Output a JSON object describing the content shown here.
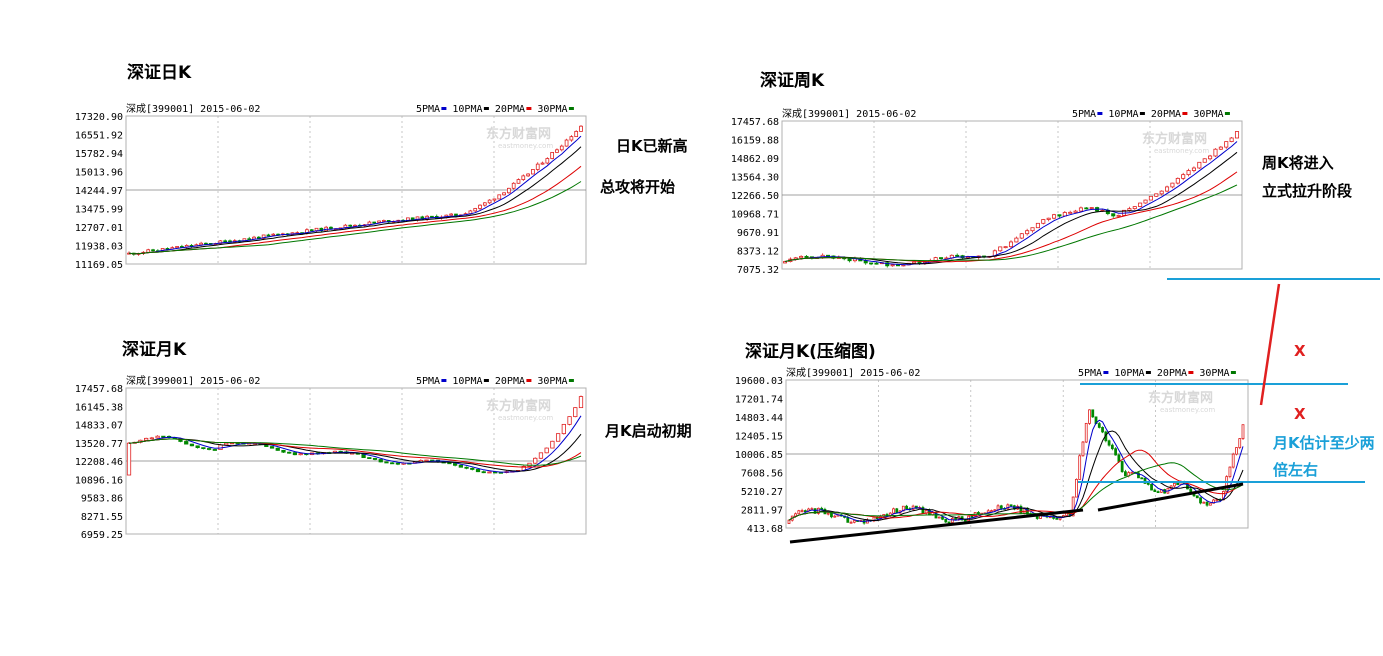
{
  "chart_data": [
    {
      "type": "candlestick",
      "title": "深证日K",
      "header": "深成[399001] 2015-06-02",
      "legend": [
        "5PMA",
        "10PMA",
        "20PMA",
        "30PMA"
      ],
      "yticks": [
        "17320.90",
        "16551.92",
        "15782.94",
        "15013.96",
        "14244.97",
        "13475.99",
        "12707.01",
        "11938.03",
        "11169.05"
      ],
      "ylim": [
        11169.05,
        17320.9
      ],
      "start": 11600,
      "end": 16900,
      "annotation": [
        "日K已新高",
        "总攻将开始"
      ]
    },
    {
      "type": "candlestick",
      "title": "深证周K",
      "header": "深成[399001] 2015-06-02",
      "legend": [
        "5PMA",
        "10PMA",
        "20PMA",
        "30PMA"
      ],
      "yticks": [
        "17457.68",
        "16159.88",
        "14862.09",
        "13564.30",
        "12266.50",
        "10968.71",
        "9670.91",
        "8373.12",
        "7075.32"
      ],
      "ylim": [
        7075.32,
        17457.68
      ],
      "start": 7500,
      "end": 16900,
      "annotation": [
        "周K将进入",
        "立式拉升阶段"
      ]
    },
    {
      "type": "candlestick",
      "title": "深证月K",
      "header": "深成[399001] 2015-06-02",
      "legend": [
        "5PMA",
        "10PMA",
        "20PMA",
        "30PMA"
      ],
      "yticks": [
        "17457.68",
        "16145.38",
        "14833.07",
        "13520.77",
        "12208.46",
        "10896.16",
        "9583.86",
        "8271.55",
        "6959.25"
      ],
      "ylim": [
        6959.25,
        17457.68
      ],
      "start": 11200,
      "end": 16900,
      "annotation": [
        "月K启动初期"
      ]
    },
    {
      "type": "candlestick",
      "title": "深证月K(压缩图)",
      "header": "深成[399001] 2015-06-02",
      "legend": [
        "5PMA",
        "10PMA",
        "20PMA",
        "30PMA"
      ],
      "yticks": [
        "19600.03",
        "17201.74",
        "14803.44",
        "12405.15",
        "10006.85",
        "7608.56",
        "5210.27",
        "2811.97",
        "413.68"
      ],
      "ylim": [
        413.68,
        19600.03
      ],
      "start": 1000,
      "end": 16900,
      "annotation": [
        "月K估计至少两",
        "倍左右"
      ],
      "marks": [
        "X",
        "X"
      ]
    }
  ],
  "watermark": {
    "brand": "东方财富网",
    "url": "eastmoney.com"
  },
  "colors": {
    "up": "#e02020",
    "down": "#008800",
    "ma5": "#0000cc",
    "ma10": "#000000",
    "ma20": "#dd0000",
    "ma30": "#007700",
    "grid": "#b0b0b0",
    "annot_blue": "#1aa0d8",
    "annot_line": "#1aa0d8"
  }
}
